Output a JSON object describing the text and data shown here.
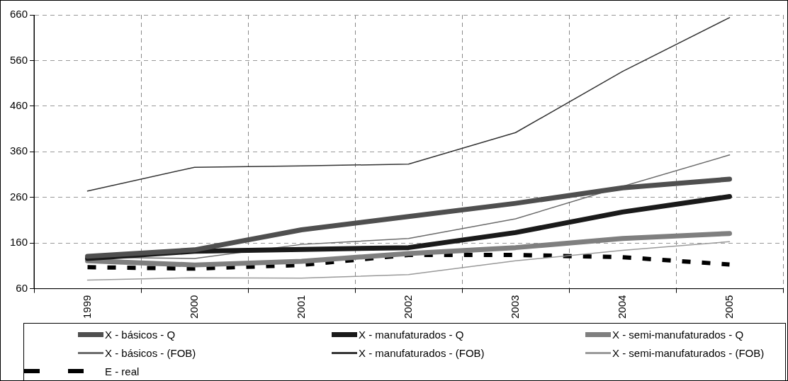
{
  "chart_data": {
    "type": "line",
    "categories": [
      "1999",
      "2000",
      "2001",
      "2002",
      "2003",
      "2004",
      "2005"
    ],
    "series": [
      {
        "name": "X - básicos - Q",
        "color": "#4f4f4f",
        "values": [
          131,
          145,
          189,
          218,
          247,
          281,
          300
        ]
      },
      {
        "name": "X - manufaturados - Q",
        "color": "#1a1a1a",
        "values": [
          126,
          142,
          146,
          150,
          183,
          228,
          262
        ]
      },
      {
        "name": "X - semi-manufaturados - Q",
        "color": "#7f7f7f",
        "values": [
          121,
          112,
          120,
          137,
          150,
          170,
          181
        ]
      },
      {
        "name": "X - básicos - (FOB)",
        "color": "#6b6b6b",
        "values": [
          129,
          126,
          157,
          170,
          213,
          284,
          353
        ]
      },
      {
        "name": "X - manufaturados - (FOB)",
        "color": "#333333",
        "values": [
          274,
          326,
          329,
          333,
          402,
          536,
          654
        ]
      },
      {
        "name": "X - semi-manufaturados - (FOB)",
        "color": "#9a9a9a",
        "values": [
          79,
          84,
          83,
          91,
          121,
          144,
          163
        ]
      },
      {
        "name": "E - real",
        "color": "#000000",
        "values": [
          107,
          104,
          112,
          134,
          134,
          129,
          113
        ],
        "line_style": "dashed"
      }
    ],
    "ylim": [
      60,
      660
    ],
    "yticks": [
      60,
      160,
      260,
      360,
      460,
      560,
      660
    ],
    "grid": true,
    "legend": "bottom",
    "marker": "none"
  }
}
